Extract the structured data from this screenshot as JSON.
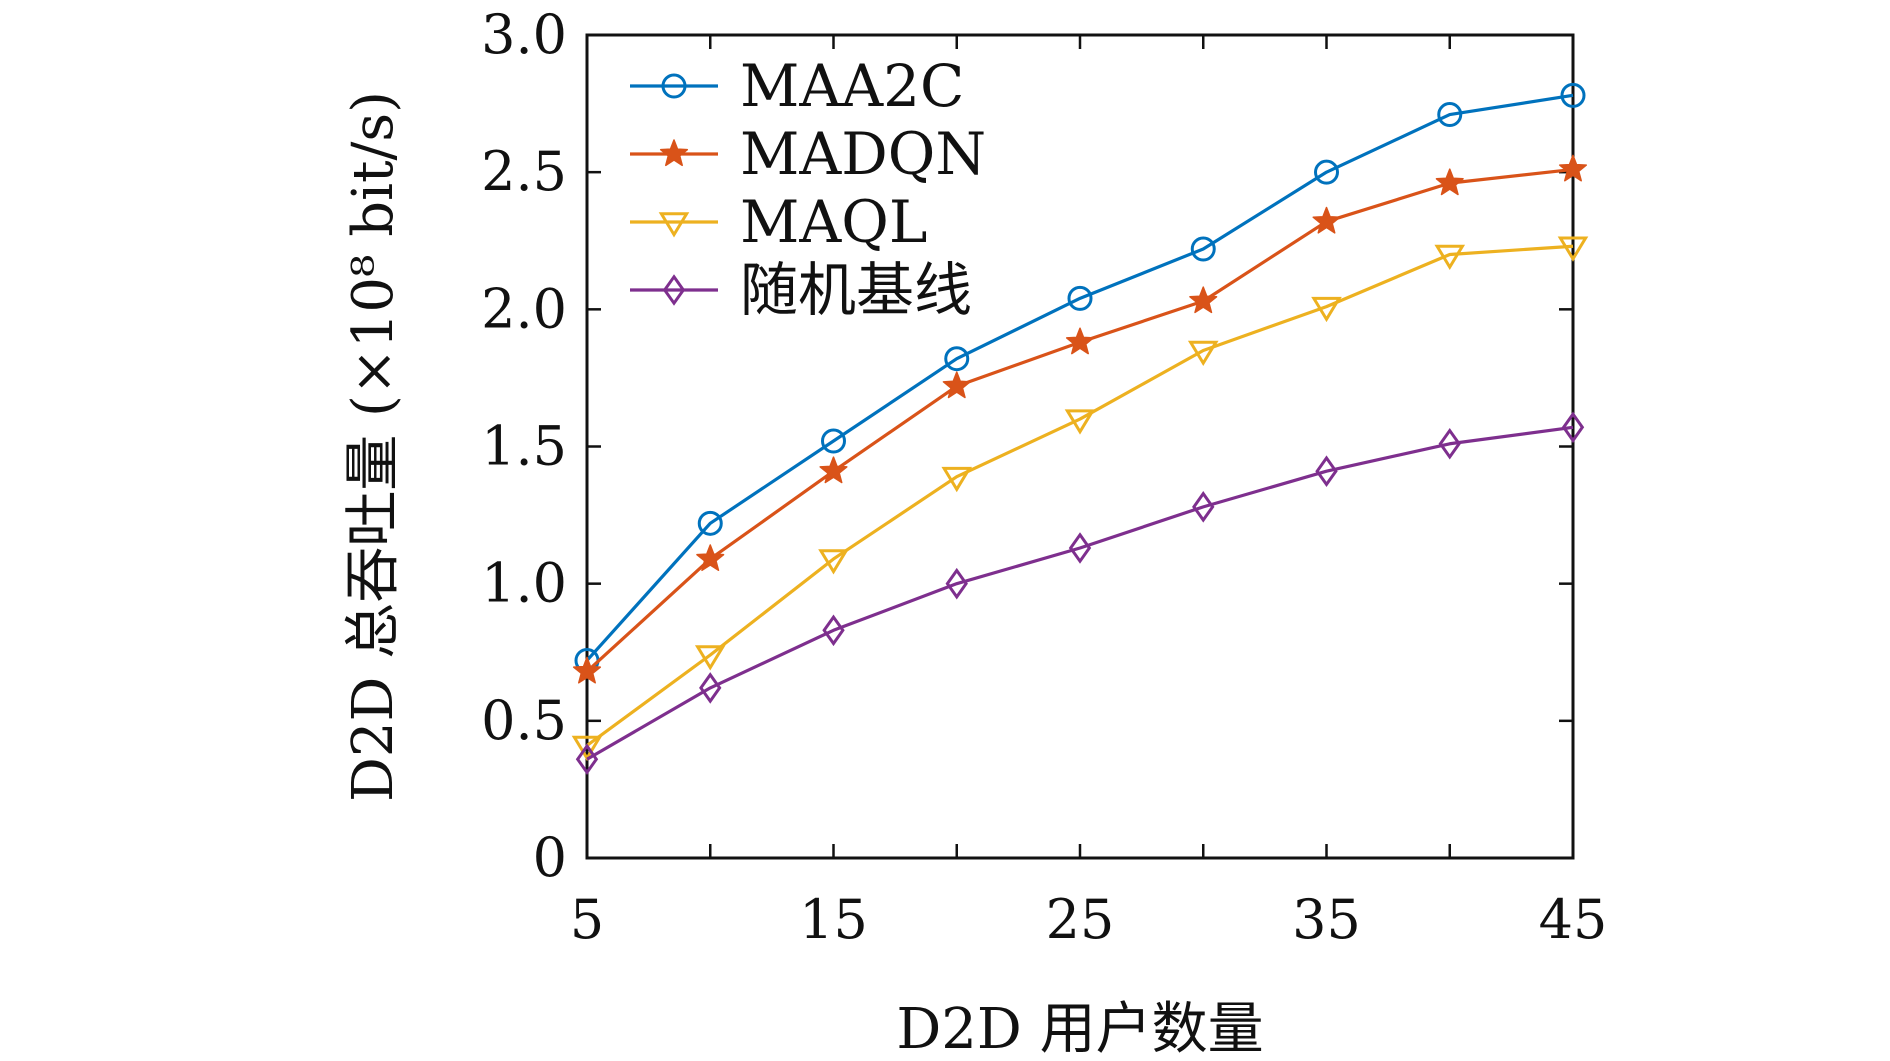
{
  "chart_data": {
    "type": "line",
    "x": [
      5,
      10,
      15,
      20,
      25,
      30,
      35,
      40,
      45
    ],
    "xlabel": "D2D 用户数量",
    "ylabel": "D2D 总吞吐量 (×10⁸ bit/s)",
    "xlim": [
      5,
      45
    ],
    "ylim": [
      0,
      3.0
    ],
    "xticks": [
      5,
      15,
      25,
      35,
      45
    ],
    "xtick_labels": [
      "5",
      "15",
      "25",
      "35",
      "45"
    ],
    "yticks": [
      0,
      0.5,
      1.0,
      1.5,
      2.0,
      2.5,
      3.0
    ],
    "ytick_labels": [
      "0",
      "0.5",
      "1.0",
      "1.5",
      "2.0",
      "2.5",
      "3.0"
    ],
    "grid": false,
    "legend_position": "top-left",
    "series": [
      {
        "name": "MAA2C",
        "color": "#0072BD",
        "marker": "circle",
        "values": [
          0.72,
          1.22,
          1.52,
          1.82,
          2.04,
          2.22,
          2.5,
          2.71,
          2.78
        ]
      },
      {
        "name": "MADQN",
        "color": "#D95319",
        "marker": "star",
        "values": [
          0.68,
          1.09,
          1.41,
          1.72,
          1.88,
          2.03,
          2.32,
          2.46,
          2.51
        ]
      },
      {
        "name": "MAQL",
        "color": "#EDB120",
        "marker": "triangle-down",
        "values": [
          0.41,
          0.74,
          1.09,
          1.39,
          1.6,
          1.85,
          2.01,
          2.2,
          2.23
        ]
      },
      {
        "name": "随机基线",
        "color": "#7E2F8E",
        "marker": "diamond",
        "values": [
          0.36,
          0.62,
          0.83,
          1.0,
          1.13,
          1.28,
          1.41,
          1.51,
          1.57
        ]
      }
    ]
  }
}
